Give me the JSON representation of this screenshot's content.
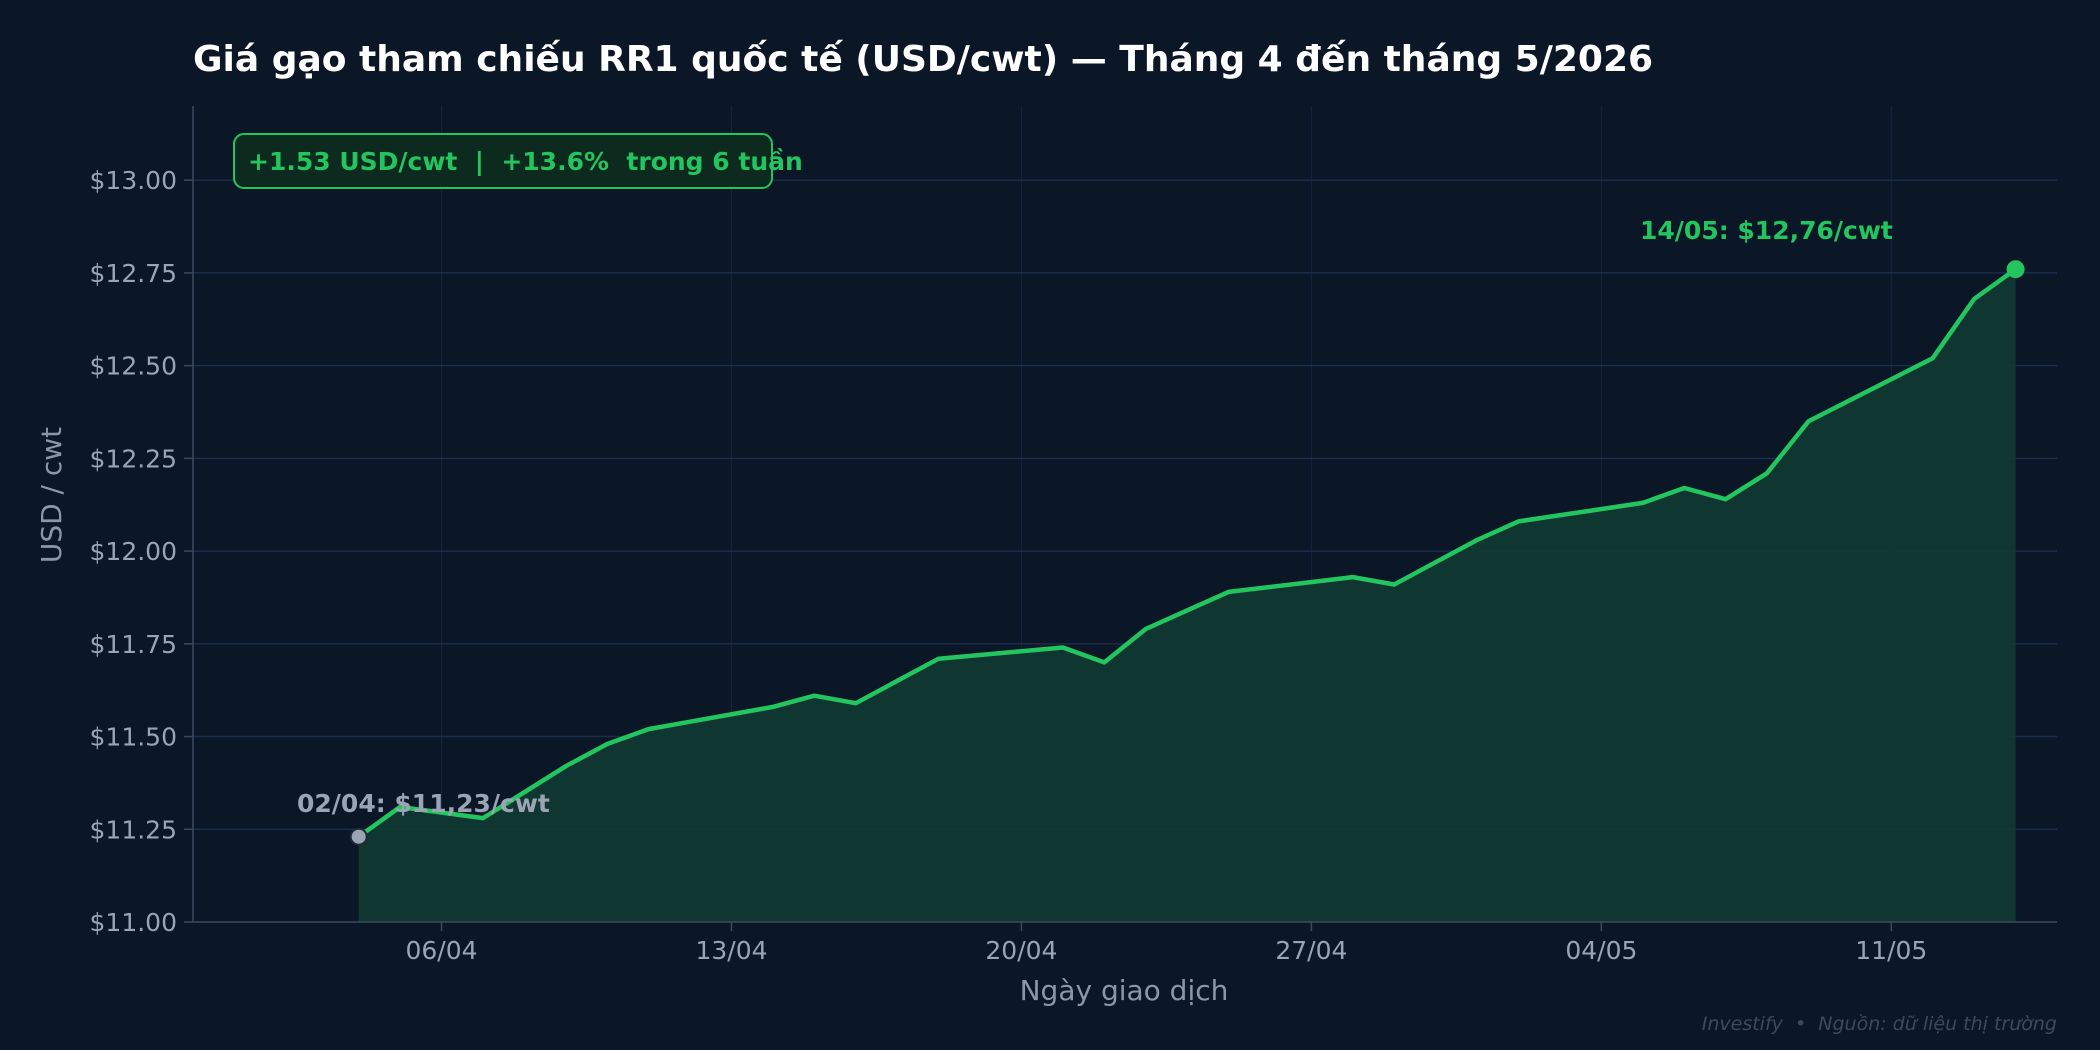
{
  "chart_data": {
    "type": "area",
    "title": "Giá gạo tham chiếu RR1 quốc tế (USD/cwt) — Tháng 4 đến tháng 5/2026",
    "xlabel": "Ngày giao dịch",
    "ylabel": "USD / cwt",
    "x_ticks": [
      {
        "day": 4,
        "label": "06/04"
      },
      {
        "day": 11,
        "label": "13/04"
      },
      {
        "day": 18,
        "label": "20/04"
      },
      {
        "day": 25,
        "label": "27/04"
      },
      {
        "day": 32,
        "label": "04/05"
      },
      {
        "day": 39,
        "label": "11/05"
      }
    ],
    "y_ticks": [
      {
        "value": 11.0,
        "label": "$11.00"
      },
      {
        "value": 11.25,
        "label": "$11.25"
      },
      {
        "value": 11.5,
        "label": "$11.50"
      },
      {
        "value": 11.75,
        "label": "$11.75"
      },
      {
        "value": 12.0,
        "label": "$12.00"
      },
      {
        "value": 12.25,
        "label": "$12.25"
      },
      {
        "value": 12.5,
        "label": "$12.50"
      },
      {
        "value": 12.75,
        "label": "$12.75"
      },
      {
        "value": 13.0,
        "label": "$13.00"
      }
    ],
    "xlim": [
      -2,
      43
    ],
    "ylim": [
      11.0,
      13.2
    ],
    "grid": true,
    "series": [
      {
        "values": [
          {
            "day": 2,
            "value": 11.23
          },
          {
            "day": 3,
            "value": 11.31
          },
          {
            "day": 5,
            "value": 11.28
          },
          {
            "day": 6,
            "value": 11.35
          },
          {
            "day": 7,
            "value": 11.42
          },
          {
            "day": 8,
            "value": 11.48
          },
          {
            "day": 9,
            "value": 11.52
          },
          {
            "day": 10,
            "value": 11.54
          },
          {
            "day": 12,
            "value": 11.58
          },
          {
            "day": 13,
            "value": 11.61
          },
          {
            "day": 14,
            "value": 11.59
          },
          {
            "day": 15,
            "value": 11.65
          },
          {
            "day": 16,
            "value": 11.71
          },
          {
            "day": 19,
            "value": 11.74
          },
          {
            "day": 20,
            "value": 11.7
          },
          {
            "day": 21,
            "value": 11.79
          },
          {
            "day": 22,
            "value": 11.84
          },
          {
            "day": 23,
            "value": 11.89
          },
          {
            "day": 26,
            "value": 11.93
          },
          {
            "day": 27,
            "value": 11.91
          },
          {
            "day": 28,
            "value": 11.97
          },
          {
            "day": 29,
            "value": 12.03
          },
          {
            "day": 30,
            "value": 12.08
          },
          {
            "day": 33,
            "value": 12.13
          },
          {
            "day": 34,
            "value": 12.17
          },
          {
            "day": 35,
            "value": 12.14
          },
          {
            "day": 36,
            "value": 12.21
          },
          {
            "day": 37,
            "value": 12.35
          },
          {
            "day": 40,
            "value": 12.52
          },
          {
            "day": 41,
            "value": 12.68
          },
          {
            "day": 42,
            "value": 12.76
          }
        ]
      }
    ],
    "annotations": {
      "start_label": "02/04: $11,23/cwt",
      "end_label": "14/05: $12,76/cwt",
      "change_badge": "+1.53 USD/cwt  |  +13.6%  trong 6 tuần"
    },
    "footer": "Investify  •  Nguồn: dữ liệu thị trường"
  },
  "colors": {
    "background": "#0b1627",
    "line": "#22c55e",
    "area_fill": "#0f3a32",
    "grid": "#1b2e4c",
    "start_marker": "#9aa4b4",
    "badge_bg": "#0d2a1f"
  }
}
